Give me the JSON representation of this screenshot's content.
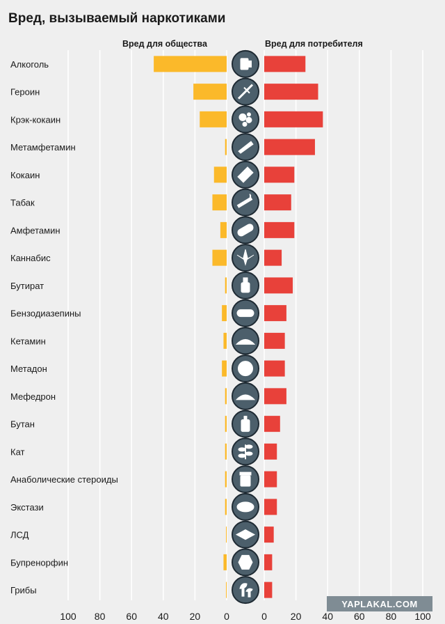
{
  "header": {
    "title": "Вред, вызываемый наркотиками",
    "left_subtitle": "Вред для общества",
    "right_subtitle": "Вред для потребителя"
  },
  "watermark": "YAPLAKAL.COM",
  "colors": {
    "society": "#fbb92a",
    "user": "#e8413a",
    "background": "#efefef",
    "icon": "#4c5f6b"
  },
  "chart_data": {
    "type": "bar",
    "categories": [
      "Алкоголь",
      "Героин",
      "Крэк-кокаин",
      "Метамфетамин",
      "Кокаин",
      "Табак",
      "Амфетамин",
      "Каннабис",
      "Бутират",
      "Бензодиазепины",
      "Кетамин",
      "Метадон",
      "Мефедрон",
      "Бутан",
      "Кат",
      "Анаболические стероиды",
      "Экстази",
      "ЛСД",
      "Бупренорфин",
      "Грибы"
    ],
    "icons": [
      "beer-mug-icon",
      "syringe-icon",
      "crack-rocks-icon",
      "meth-crystal-icon",
      "razor-blade-icon",
      "cigarette-icon",
      "capsule-icon",
      "cannabis-leaf-icon",
      "bottle-icon",
      "tablet-icon",
      "powder-pile-icon",
      "cross-pill-icon",
      "powder-pile-icon",
      "gas-canister-icon",
      "khat-plant-icon",
      "pill-jar-icon",
      "round-pill-icon",
      "blotter-icon",
      "hexagon-pill-icon",
      "mushroom-icon"
    ],
    "series": [
      {
        "name": "Вред для общества",
        "values": [
          46,
          21,
          17,
          1,
          8,
          9,
          4,
          9,
          1,
          3,
          2,
          3,
          1,
          1,
          1,
          1,
          1,
          0,
          2,
          0
        ]
      },
      {
        "name": "Вред для потребителя",
        "values": [
          26,
          34,
          37,
          32,
          19,
          17,
          19,
          11,
          18,
          14,
          13,
          13,
          14,
          10,
          8,
          8,
          8,
          6,
          5,
          5
        ]
      }
    ],
    "xlim": [
      0,
      100
    ],
    "left_ticks": [
      "100",
      "80",
      "60",
      "40",
      "20",
      "0"
    ],
    "right_ticks": [
      "0",
      "20",
      "40",
      "60",
      "80",
      "100"
    ],
    "grid": true
  }
}
